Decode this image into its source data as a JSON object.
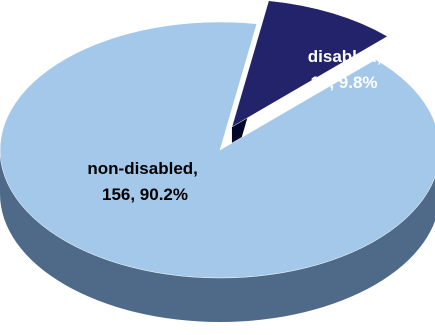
{
  "chart_data": {
    "type": "pie",
    "style": "3d-exploded",
    "slices": [
      {
        "label": "non-disabled",
        "value": 156,
        "percent": "90.2%",
        "color": "#a4c8ea",
        "side_color": "#4e6a88",
        "line1": "non-disabled,",
        "line2": "156, 90.2%",
        "text_color": "#000000"
      },
      {
        "label": "disabled",
        "value": 17,
        "percent": "9.8%",
        "color": "#23236b",
        "side_color": "#0d0d3a",
        "line1": "disabled,",
        "line2": "17, 9.8%",
        "text_color": "#ffffff"
      }
    ]
  }
}
